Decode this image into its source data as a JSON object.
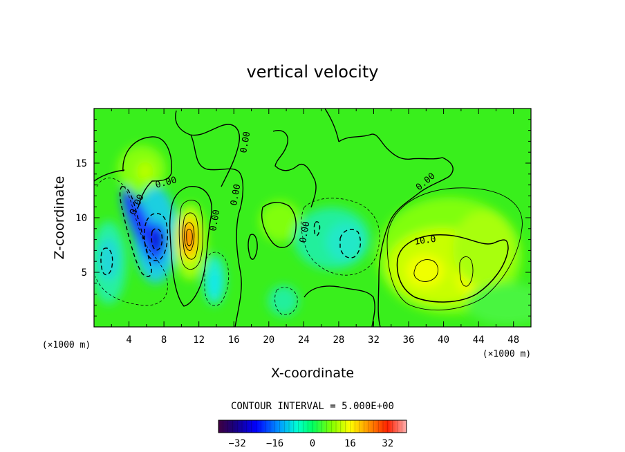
{
  "chart_data": {
    "type": "contour",
    "title": "vertical velocity",
    "xlabel": "X-coordinate",
    "ylabel": "Z-coordinate",
    "x_unit_left": "(×1000 m)",
    "x_unit_right": "(×1000 m)",
    "xlim": [
      0,
      50
    ],
    "ylim": [
      0,
      20
    ],
    "x_ticks": [
      4,
      8,
      12,
      16,
      20,
      24,
      28,
      32,
      36,
      40,
      44,
      48
    ],
    "y_ticks": [
      5,
      10,
      15
    ],
    "contour_interval_text": "CONTOUR INTERVAL = 5.000E+00",
    "contour_labels": [
      "0.00",
      "0.00",
      "0.00",
      "0.00",
      "0.00",
      "0.00",
      "0.00",
      "10.0"
    ],
    "colorbar": {
      "range": [
        -40,
        40
      ],
      "ticks": [
        -32,
        -16,
        0,
        16,
        32
      ],
      "tick_labels": [
        "−32",
        "−16",
        "0",
        "16",
        "32"
      ]
    },
    "features": [
      {
        "kind": "min",
        "x": 7.4,
        "z": 8.0,
        "value": -30
      },
      {
        "kind": "min",
        "x": 5.0,
        "z": 10.5,
        "value": -18
      },
      {
        "kind": "max",
        "x": 10.8,
        "z": 8.0,
        "value": 25
      },
      {
        "kind": "max",
        "x": 38.3,
        "z": 5.3,
        "value": 14
      },
      {
        "kind": "max",
        "x": 42.7,
        "z": 5.5,
        "value": 13
      }
    ]
  }
}
